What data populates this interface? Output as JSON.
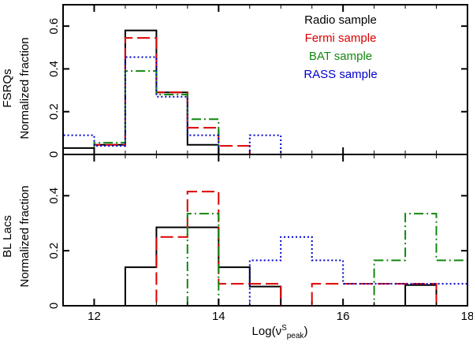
{
  "chart_data": {
    "type": "step-histogram",
    "x_axis": {
      "label_text": "Log(ν",
      "label_sup": "S",
      "label_sub": "peak",
      "label_close": ")",
      "xlim": [
        11.5,
        18
      ],
      "ticks": [
        12,
        14,
        16,
        18
      ],
      "tick_labels": [
        "12",
        "14",
        "16",
        "18"
      ]
    },
    "series_style": [
      {
        "name": "Radio sample",
        "color": "#000000",
        "dash": ""
      },
      {
        "name": "Fermi sample",
        "color": "#dd0000",
        "dash": "16,6"
      },
      {
        "name": "BAT sample",
        "color": "#118811",
        "dash": "12,4,2,4"
      },
      {
        "name": "RASS sample",
        "color": "#0000cc",
        "dash": "2,3"
      }
    ],
    "panels": [
      {
        "id": "fsrq",
        "row_label": "FSRQs",
        "ylabel": "Normalized fraction",
        "ylim": [
          0,
          0.7
        ],
        "yticks": [
          0,
          0.2,
          0.4,
          0.6
        ],
        "ytick_labels": [
          "0",
          "0.2",
          "0.4",
          "0.6"
        ],
        "legend": {
          "placement": "top-right",
          "entries": [
            "Radio sample",
            "Fermi sample",
            "BAT sample",
            "RASS sample"
          ]
        },
        "series": [
          {
            "name": "Radio sample",
            "bins": [
              [
                11.5,
                12,
                0.03
              ],
              [
                12,
                12.5,
                0.045
              ],
              [
                12.5,
                13,
                0.58
              ],
              [
                13,
                13.5,
                0.29
              ],
              [
                13.5,
                14,
                0.045
              ]
            ]
          },
          {
            "name": "Fermi sample",
            "bins": [
              [
                11.5,
                12,
                0.0
              ],
              [
                12,
                12.5,
                0.045
              ],
              [
                12.5,
                13,
                0.545
              ],
              [
                13,
                13.5,
                0.29
              ],
              [
                13.5,
                14,
                0.125
              ],
              [
                14,
                14.5,
                0.04
              ]
            ]
          },
          {
            "name": "BAT sample",
            "bins": [
              [
                11.5,
                12,
                0.0
              ],
              [
                12,
                12.5,
                0.055
              ],
              [
                12.5,
                13,
                0.39
              ],
              [
                13,
                13.5,
                0.28
              ],
              [
                13.5,
                14,
                0.165
              ]
            ]
          },
          {
            "name": "RASS sample",
            "bins": [
              [
                11.5,
                12,
                0.09
              ],
              [
                12,
                12.5,
                0.04
              ],
              [
                12.5,
                13,
                0.455
              ],
              [
                13,
                13.5,
                0.27
              ],
              [
                13.5,
                14,
                0.09
              ],
              [
                14,
                14.5,
                0.0
              ],
              [
                14.5,
                15,
                0.09
              ]
            ]
          }
        ]
      },
      {
        "id": "bllac",
        "row_label": "BL Lacs",
        "ylabel": "Normalized fraction",
        "ylim": [
          0,
          0.55
        ],
        "yticks": [
          0,
          0.2,
          0.4
        ],
        "ytick_labels": [
          "0",
          "0.2",
          "0.4"
        ],
        "series": [
          {
            "name": "Radio sample",
            "bins": [
              [
                12.5,
                13,
                0.14
              ],
              [
                13,
                13.5,
                0.285
              ],
              [
                13.5,
                14,
                0.285
              ],
              [
                14,
                14.5,
                0.14
              ],
              [
                14.5,
                15,
                0.07
              ],
              [
                15,
                17,
                0.0
              ],
              [
                17,
                17.5,
                0.075
              ]
            ]
          },
          {
            "name": "Fermi sample",
            "bins": [
              [
                12.5,
                13,
                0.0
              ],
              [
                13,
                13.5,
                0.25
              ],
              [
                13.5,
                14,
                0.415
              ],
              [
                14,
                14.5,
                0.08
              ],
              [
                14.5,
                15,
                0.08
              ],
              [
                15,
                15.5,
                0.0
              ],
              [
                15.5,
                16,
                0.08
              ],
              [
                16,
                16.5,
                0.08
              ],
              [
                16.5,
                17,
                0.08
              ],
              [
                17,
                17.5,
                0.08
              ]
            ]
          },
          {
            "name": "BAT sample",
            "bins": [
              [
                13.5,
                14,
                0.335
              ],
              [
                14,
                16.5,
                0.0
              ],
              [
                16.5,
                17,
                0.165
              ],
              [
                17,
                17.5,
                0.335
              ],
              [
                17.5,
                18,
                0.165
              ]
            ]
          },
          {
            "name": "RASS sample",
            "bins": [
              [
                14,
                14.5,
                0.0
              ],
              [
                14.5,
                15,
                0.165
              ],
              [
                15,
                15.5,
                0.25
              ],
              [
                15.5,
                16,
                0.165
              ],
              [
                16,
                18,
                0.08
              ]
            ]
          }
        ]
      }
    ]
  }
}
